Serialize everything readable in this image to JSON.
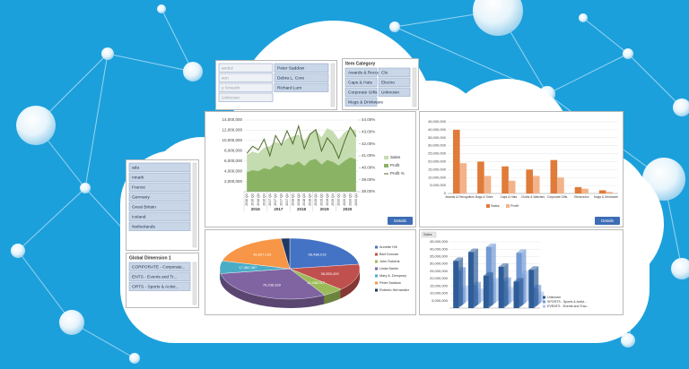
{
  "slicers": [
    {
      "items": [
        "andez",
        "Peter Saddow",
        "son",
        "Debra L. Core",
        "y Smeeth",
        "Richard Lum",
        "Unknown"
      ]
    },
    {
      "title": "Item Category",
      "items": [
        "Awards & Recognition",
        "Clo",
        "Caps & Hats",
        "Electro",
        "Corporate Gifts",
        "Unknown",
        "Mugs & Drinkware"
      ]
    },
    {
      "items": [
        "ada",
        "nmark",
        "France",
        "Germany",
        "Great Britain",
        "Iceland",
        "Netherlands"
      ]
    },
    {
      "title": "Global Dimension 1",
      "items": [
        "CORPORATE - Corporate...",
        "ENTS - Events and Tr...",
        "ORTS - Sports & Activi..."
      ]
    }
  ],
  "chart_data": [
    {
      "type": "area",
      "categories": [
        "2016 Q1",
        "2016 Q2",
        "2016 Q3",
        "2016 Q4",
        "2017 Q1",
        "2017 Q2",
        "2017 Q3",
        "2017 Q4",
        "2018 Q1",
        "2018 Q2",
        "2018 Q3",
        "2018 Q4",
        "2019 Q1",
        "2019 Q2",
        "2019 Q3",
        "2019 Q4",
        "2020 Q1",
        "2020 Q2",
        "2020 Q3",
        "2020 Q4"
      ],
      "groups": [
        "2016",
        "2017",
        "2018",
        "2019",
        "2020"
      ],
      "series": [
        {
          "name": "Sales",
          "kind": "area",
          "color": "#c5dbb0",
          "values": [
            7200000,
            7800000,
            7500000,
            8600000,
            8900000,
            9800000,
            9200000,
            10400000,
            10800000,
            11200000,
            9900000,
            11500000,
            12100000,
            10600000,
            12400000,
            11800000,
            10200000,
            11600000,
            12300000,
            12000000
          ]
        },
        {
          "name": "Profit",
          "kind": "area",
          "color": "#8ab464",
          "values": [
            3800000,
            4200000,
            4000000,
            4600000,
            4300000,
            5100000,
            4700000,
            5500000,
            5200000,
            5900000,
            5000000,
            6100000,
            6400000,
            5300000,
            6200000,
            5800000,
            5100000,
            6000000,
            6700000,
            6300000
          ]
        },
        {
          "name": "Profit %",
          "kind": "line",
          "axis": "y2",
          "color": "#4e6b2a",
          "values": [
            41.2,
            41.8,
            41.5,
            42.4,
            41.0,
            42.7,
            41.9,
            43.1,
            42.0,
            43.5,
            41.6,
            42.8,
            43.2,
            41.4,
            42.5,
            41.9,
            40.8,
            42.2,
            43.4,
            42.6
          ]
        }
      ],
      "ylim": [
        0,
        14000000
      ],
      "yticks": [
        {
          "value": 2000000,
          "label": "2,000,000"
        },
        {
          "value": 4000000,
          "label": "4,000,000"
        },
        {
          "value": 6000000,
          "label": "6,000,000"
        },
        {
          "value": 8000000,
          "label": "8,000,000"
        },
        {
          "value": 10000000,
          "label": "10,000,000"
        },
        {
          "value": 12000000,
          "label": "12,000,000"
        },
        {
          "value": 14000000,
          "label": "14,000,000"
        }
      ],
      "y2lim": [
        38,
        44
      ],
      "y2ticks": [
        {
          "value": 38,
          "label": "38.00%"
        },
        {
          "value": 39,
          "label": "39.00%"
        },
        {
          "value": 40,
          "label": "40.00%"
        },
        {
          "value": 41,
          "label": "41.00%"
        },
        {
          "value": 42,
          "label": "42.00%"
        },
        {
          "value": 43,
          "label": "43.00%"
        },
        {
          "value": 44,
          "label": "44.00%"
        }
      ],
      "button": "Details"
    },
    {
      "type": "bar",
      "categories": [
        "Awards & Recognition",
        "Bags & Totes",
        "Caps & Hats",
        "Cloths & Watches",
        "Corporate Gifts",
        "Electronics",
        "Mugs & Drinkware"
      ],
      "series": [
        {
          "name": "Sales",
          "color": "#e07b39",
          "values": [
            40000000,
            20000000,
            17000000,
            15000000,
            21000000,
            4000000,
            2000000
          ]
        },
        {
          "name": "Profit",
          "color": "#f3b38a",
          "values": [
            19000000,
            11000000,
            8000000,
            11000000,
            10000000,
            3000000,
            1000000
          ]
        }
      ],
      "ylim": [
        0,
        45000000
      ],
      "yticks": [
        0,
        {
          "value": 5000000,
          "label": "5,000,000"
        },
        {
          "value": 10000000,
          "label": "10,000,000"
        },
        {
          "value": 15000000,
          "label": "15,000,000"
        },
        {
          "value": 20000000,
          "label": "20,000,000"
        },
        {
          "value": 25000000,
          "label": "25,000,000"
        },
        {
          "value": 30000000,
          "label": "30,000,000"
        },
        {
          "value": 35000000,
          "label": "35,000,000"
        },
        {
          "value": 40000000,
          "label": "40,000,000"
        },
        {
          "value": 45000000,
          "label": "45,000,000"
        }
      ],
      "button": "Details"
    },
    {
      "type": "pie",
      "three_d": true,
      "categories": [
        "Annette Hill",
        "Bart Duncan",
        "John Roberts",
        "Linda Martin",
        "Mary A. Dempsey",
        "Peter Saddow",
        "Roberto Hernandez"
      ],
      "colors": [
        "#4472c4",
        "#c0504d",
        "#9bbb59",
        "#8064a2",
        "#4bacc6",
        "#f79646",
        "#1f3864"
      ],
      "values": [
        58488016,
        36853420,
        12438017,
        79236339,
        17382387,
        48607133,
        5200000
      ],
      "value_labels": [
        "58,488,016",
        "36,853,420",
        "12,438,017",
        "79,236,339",
        "17,382,387",
        "48,607,133",
        null
      ]
    },
    {
      "type": "bar",
      "three_d": true,
      "header": "Sales",
      "categories": [
        null,
        null,
        null,
        null,
        null,
        null
      ],
      "series": [
        {
          "name": "Unknown",
          "color": "#2e5c99",
          "values": [
            32000000,
            38000000,
            22000000,
            28000000,
            18000000,
            26000000
          ]
        },
        {
          "name": "SPORTS - Sports & Activi...",
          "color": "#7099d6",
          "values": [
            24000000,
            14000000,
            40000000,
            17000000,
            36000000,
            12000000
          ]
        },
        {
          "name": "EVENTS - Events and Trav...",
          "color": "#aec4e6",
          "values": [
            10000000,
            8000000,
            15000000,
            9000000,
            20000000,
            6000000
          ]
        }
      ],
      "ylim": [
        0,
        45000000
      ],
      "yticks": [
        {
          "value": 5000000,
          "label": "5,000,000"
        },
        {
          "value": 10000000,
          "label": "10,000,000"
        },
        {
          "value": 15000000,
          "label": "15,000,000"
        },
        {
          "value": 20000000,
          "label": "20,000,000"
        },
        {
          "value": 25000000,
          "label": "25,000,000"
        },
        {
          "value": 30000000,
          "label": "30,000,000"
        },
        {
          "value": 35000000,
          "label": "35,000,000"
        },
        {
          "value": 40000000,
          "label": "40,000,000"
        },
        {
          "value": 45000000,
          "label": "45,000,000"
        }
      ]
    }
  ]
}
